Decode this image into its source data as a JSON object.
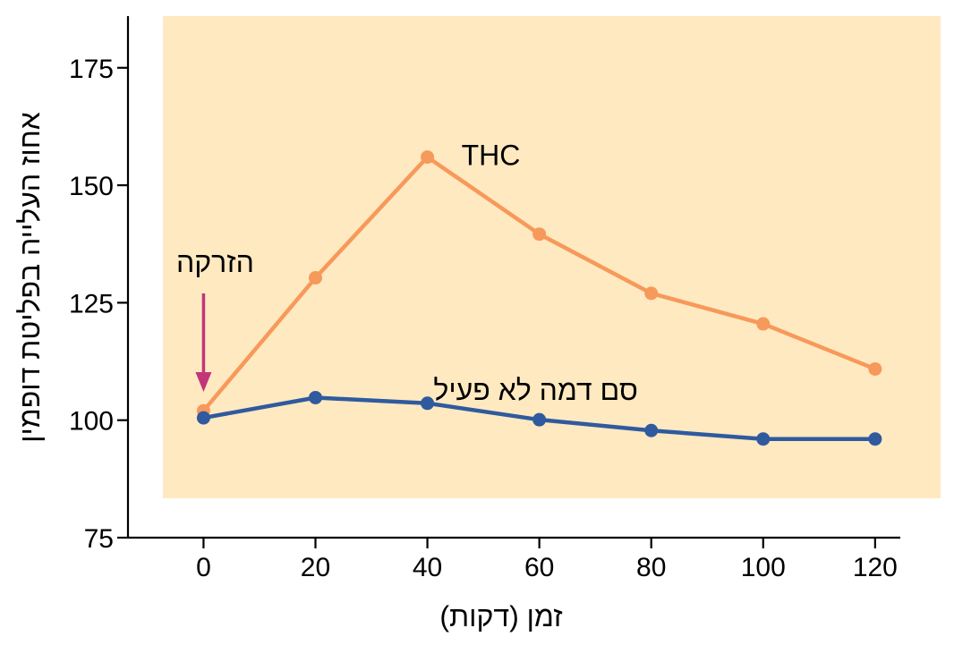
{
  "chart_data": {
    "type": "line",
    "xlabel": "זמן (דקות)",
    "ylabel": "אחוז העלייה בפליטת דופמין",
    "x": [
      0,
      20,
      40,
      60,
      80,
      100,
      120
    ],
    "xticks": [
      0,
      20,
      40,
      60,
      80,
      100,
      120
    ],
    "yticks": [
      75,
      100,
      125,
      150,
      175
    ],
    "xlim": [
      -13.5,
      124.5
    ],
    "ylim": [
      75,
      186
    ],
    "series": [
      {
        "name": "THC",
        "color": "#f7995a",
        "values": [
          102,
          130.3,
          156,
          139.6,
          127,
          120.5,
          110.9
        ]
      },
      {
        "name": "סם דמה לא פעיל",
        "color": "#2f5a9e",
        "values": [
          100.5,
          104.8,
          103.6,
          100.1,
          97.8,
          96,
          96
        ]
      }
    ],
    "annotation": {
      "text": "הזרקה",
      "x": 0,
      "arrow_color": "#c2357a"
    },
    "background_color": "#fee9c1",
    "grid": false
  }
}
